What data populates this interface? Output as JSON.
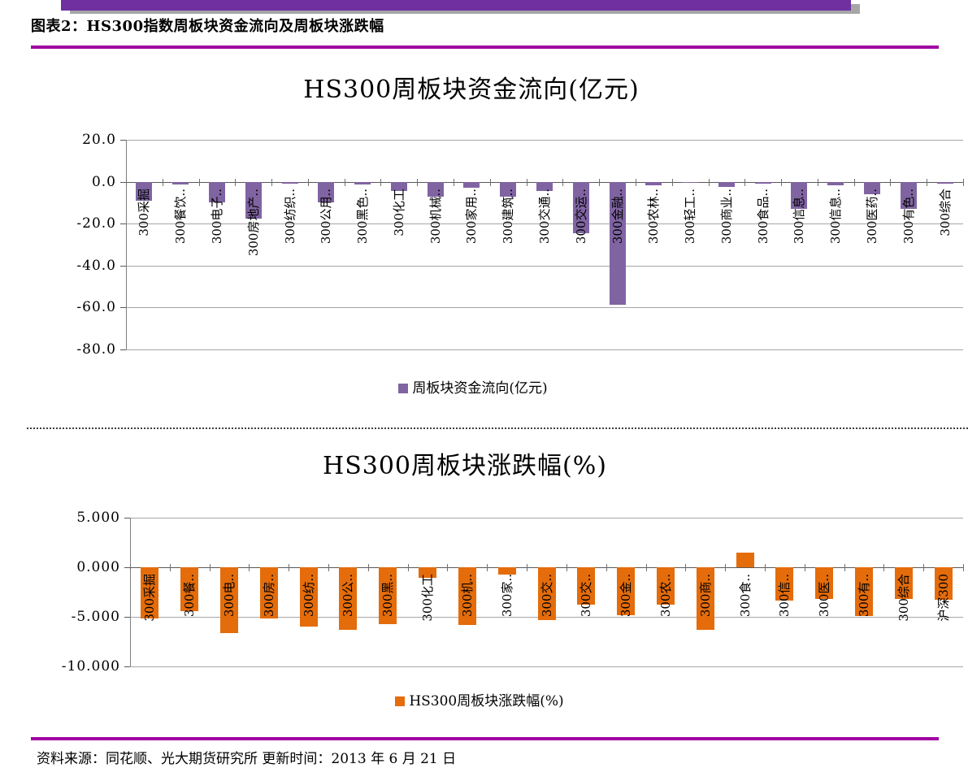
{
  "page": {
    "figure_label": "图表2：",
    "figure_title": "HS300指数周板块资金流向及周板块涨跌幅",
    "source_note": "资料来源：同花顺、光大期货研究所  更新时间：2013 年 6 月 21 日"
  },
  "colors": {
    "banner_purple": "#7030A0",
    "banner_shadow": "#A6A6A6",
    "rule_magenta": "#A100A1",
    "bar_purple": "#8064A2",
    "bar_orange": "#E46C0A",
    "gridline_gray": "#A6A6A6",
    "zero_axis_gray": "#595959"
  },
  "chart_data": [
    {
      "type": "bar",
      "title": "HS300周板块资金流向(亿元)",
      "legend": "周板块资金流向(亿元)",
      "legend_position": "bottom",
      "bar_color": "#8064A2",
      "grid": true,
      "ylim": [
        -80,
        20
      ],
      "yticks": [
        20,
        0,
        -20,
        -40,
        -60,
        -80
      ],
      "ytick_labels": [
        "20.0",
        "0.0",
        "-20.0",
        "-40.0",
        "-60.0",
        "-80.0"
      ],
      "categories": [
        "300采掘",
        "300餐饮..",
        "300电子..",
        "300房地产..",
        "300纺织..",
        "300公用..",
        "300黑色..",
        "300化工",
        "300机械..",
        "300家用..",
        "300建筑..",
        "300交通..",
        "300交运..",
        "300金融..",
        "300农林..",
        "300轻工..",
        "300商业..",
        "300食品..",
        "300信息..",
        "300信息..",
        "300医药..",
        "300有色..",
        "300综合"
      ],
      "values": [
        -9,
        -1.5,
        -10,
        -17.5,
        -0.8,
        -10,
        -1.5,
        -4.5,
        -7,
        -3,
        -7,
        -4.5,
        -24.5,
        -58.5,
        -1.6,
        -0.6,
        -2.4,
        -0.8,
        -13,
        -1.6,
        -6,
        -13,
        -1
      ]
    },
    {
      "type": "bar",
      "title": "HS300周板块涨跌幅(%)",
      "legend": "HS300周板块涨跌幅(%)",
      "legend_position": "bottom",
      "bar_color": "#E46C0A",
      "grid": true,
      "ylim": [
        -10,
        5
      ],
      "yticks": [
        5,
        0,
        -5,
        -10
      ],
      "ytick_labels": [
        "5.000",
        "0.000",
        "-5.000",
        "-10.000"
      ],
      "categories": [
        "300采掘",
        "300餐..",
        "300电..",
        "300房..",
        "300纺..",
        "300公..",
        "300黑..",
        "300化工",
        "300机..",
        "300家..",
        "300交..",
        "300交..",
        "300金..",
        "300农..",
        "300商..",
        "300食..",
        "300信..",
        "300医..",
        "300有..",
        "300综合",
        "沪深300"
      ],
      "values": [
        -5.2,
        -4.4,
        -6.6,
        -5.2,
        -6.0,
        -6.3,
        -5.7,
        -1.1,
        -5.8,
        -0.7,
        -5.3,
        -3.8,
        -4.8,
        -3.8,
        -6.3,
        1.5,
        -3.4,
        -3.2,
        -4.9,
        -3.2,
        -3.3
      ]
    }
  ]
}
